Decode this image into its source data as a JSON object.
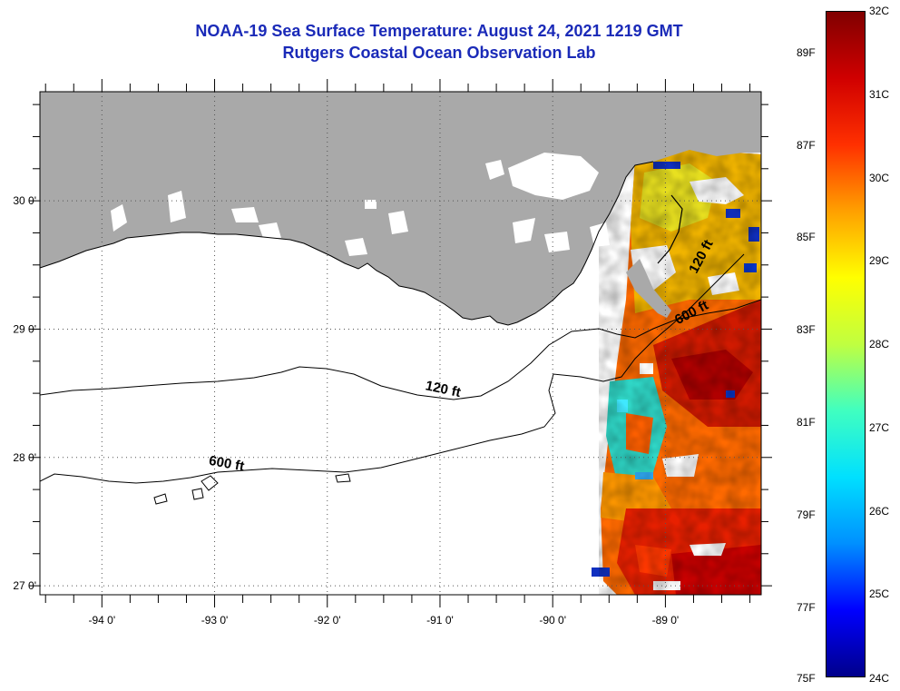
{
  "header": {
    "title": "NOAA-19 Sea Surface Temperature:  August 24, 2021 1219 GMT",
    "subtitle": "Rutgers Coastal Ocean Observation Lab"
  },
  "map": {
    "lon_range": [
      -94.55,
      -88.15
    ],
    "lat_range": [
      26.93,
      30.85
    ],
    "lon_ticks": [
      {
        "value": -94,
        "label": "-94 0'"
      },
      {
        "value": -93,
        "label": "-93 0'"
      },
      {
        "value": -92,
        "label": "-92 0'"
      },
      {
        "value": -91,
        "label": "-91 0'"
      },
      {
        "value": -90,
        "label": "-90 0'"
      },
      {
        "value": -89,
        "label": "-89 0'"
      }
    ],
    "lat_ticks": [
      {
        "value": 30,
        "label": "30 0'"
      },
      {
        "value": 29,
        "label": "29 0'"
      },
      {
        "value": 28,
        "label": "28 0'"
      },
      {
        "value": 27,
        "label": "27 0'"
      }
    ],
    "land_color": "#a9a9a9",
    "contours": [
      {
        "label": "120 ft",
        "label_lon": -90.98,
        "label_lat": 28.5
      },
      {
        "label": "600 ft",
        "label_lon": -92.9,
        "label_lat": 27.92
      },
      {
        "label": "120 ft",
        "label_lon": -88.65,
        "label_lat": 29.55
      },
      {
        "label": "600 ft",
        "label_lon": -88.75,
        "label_lat": 29.1
      }
    ]
  },
  "colorbar": {
    "fahrenheit_labels": [
      "89F",
      "87F",
      "85F",
      "83F",
      "81F",
      "79F",
      "77F",
      "75F"
    ],
    "celsius_labels": [
      "32C",
      "31C",
      "30C",
      "29C",
      "28C",
      "27C",
      "26C",
      "25C",
      "24C"
    ],
    "range_c": [
      24,
      32
    ],
    "stops": [
      "#00008b",
      "#0000ff",
      "#0090ff",
      "#00e0ff",
      "#40ffc0",
      "#c0ff40",
      "#ffff00",
      "#ffa000",
      "#ff3000",
      "#d00000",
      "#800000"
    ]
  }
}
